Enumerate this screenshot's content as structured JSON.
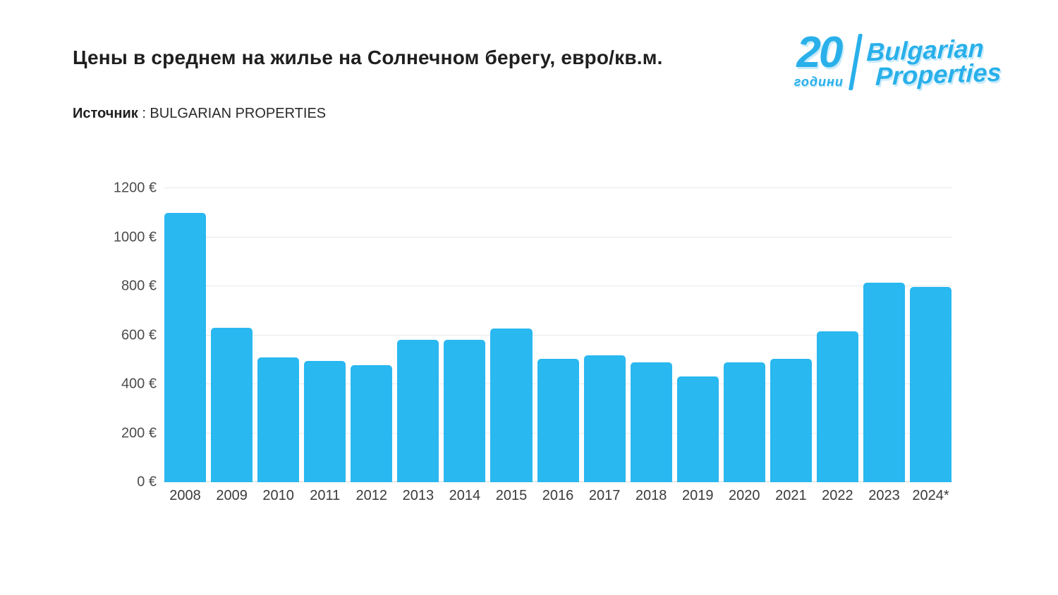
{
  "header": {
    "title": "Цены в среднем на жилье на Солнечном берегу, евро/кв.м.",
    "source_label": "Источник",
    "source_value": ": BULGARIAN PROPERTIES"
  },
  "logo": {
    "number": "20",
    "years_word": "години",
    "brand_line1": "Bulgarian",
    "brand_line2": "Properties",
    "color": "#29b0ea"
  },
  "chart_data": {
    "type": "bar",
    "title": "Цены в среднем на жилье на Солнечном берегу, евро/кв.м.",
    "source": "BULGARIAN PROPERTIES",
    "categories": [
      "2008",
      "2009",
      "2010",
      "2011",
      "2012",
      "2013",
      "2014",
      "2015",
      "2016",
      "2017",
      "2018",
      "2019",
      "2020",
      "2021",
      "2022",
      "2023",
      "2024*"
    ],
    "values": [
      1100,
      630,
      510,
      495,
      477,
      580,
      582,
      627,
      503,
      519,
      488,
      433,
      488,
      505,
      617,
      815,
      798
    ],
    "xlabel": "",
    "ylabel": "",
    "ylim": [
      0,
      1200
    ],
    "ytick_step": 200,
    "ytick_suffix": " €",
    "bar_color": "#29b8f0",
    "grid": true,
    "legend": false
  }
}
